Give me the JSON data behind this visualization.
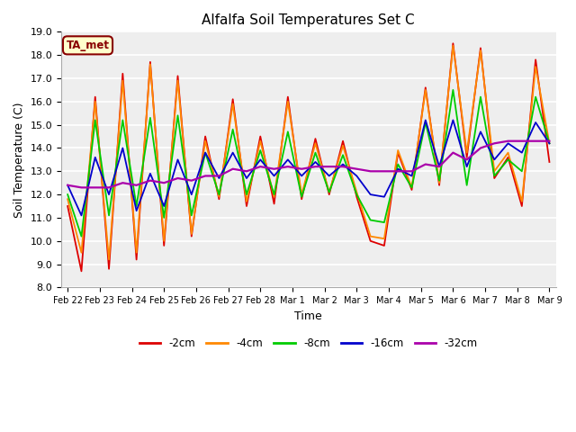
{
  "title": "Alfalfa Soil Temperatures Set C",
  "xlabel": "Time",
  "ylabel": "Soil Temperature (C)",
  "ylim": [
    8.0,
    19.0
  ],
  "yticks": [
    8.0,
    9.0,
    10.0,
    11.0,
    12.0,
    13.0,
    14.0,
    15.0,
    16.0,
    17.0,
    18.0,
    19.0
  ],
  "xtick_labels": [
    "Feb 22",
    "Feb 23",
    "Feb 24",
    "Feb 25",
    "Feb 26",
    "Feb 27",
    "Feb 28",
    "Mar 1",
    "Mar 2",
    "Mar 3",
    "Mar 4",
    "Mar 5",
    "Mar 6",
    "Mar 7",
    "Mar 8",
    "Mar 9"
  ],
  "fig_bg_color": "#ffffff",
  "plot_bg_color": "#eeeeee",
  "grid_color": "#ffffff",
  "annotation_text": "TA_met",
  "annotation_bg": "#ffffcc",
  "annotation_border": "#880000",
  "annotation_text_color": "#880000",
  "series_order": [
    "2cm",
    "4cm",
    "8cm",
    "16cm",
    "32cm"
  ],
  "series": {
    "2cm": {
      "color": "#dd0000",
      "label": "-2cm",
      "linewidth": 1.3,
      "values": [
        11.5,
        8.7,
        16.2,
        8.8,
        17.2,
        9.2,
        17.7,
        9.8,
        17.1,
        10.2,
        14.5,
        11.8,
        16.1,
        11.5,
        14.5,
        11.6,
        16.2,
        11.8,
        14.4,
        12.0,
        14.3,
        11.9,
        10.0,
        9.8,
        13.8,
        12.2,
        16.6,
        12.4,
        18.5,
        13.6,
        18.3,
        12.7,
        13.6,
        11.5,
        17.8,
        13.4
      ]
    },
    "4cm": {
      "color": "#ff8800",
      "label": "-4cm",
      "linewidth": 1.3,
      "values": [
        11.8,
        9.5,
        16.0,
        9.2,
        16.9,
        9.5,
        17.6,
        10.0,
        16.9,
        10.3,
        14.3,
        11.9,
        15.9,
        11.7,
        14.3,
        11.9,
        16.0,
        12.0,
        14.2,
        12.1,
        14.1,
        12.1,
        10.2,
        10.1,
        13.9,
        12.3,
        16.5,
        12.5,
        18.4,
        13.8,
        18.2,
        13.0,
        13.8,
        11.7,
        17.5,
        14.2
      ]
    },
    "8cm": {
      "color": "#00cc00",
      "label": "-8cm",
      "linewidth": 1.3,
      "values": [
        12.0,
        10.2,
        15.2,
        11.1,
        15.2,
        11.5,
        15.3,
        11.0,
        15.4,
        11.1,
        13.8,
        12.0,
        14.8,
        12.0,
        13.9,
        12.0,
        14.7,
        11.9,
        13.8,
        12.1,
        13.7,
        12.0,
        10.9,
        10.8,
        13.3,
        12.3,
        15.1,
        12.6,
        16.5,
        12.4,
        16.2,
        12.8,
        13.5,
        13.0,
        16.2,
        14.2
      ]
    },
    "16cm": {
      "color": "#0000cc",
      "label": "-16cm",
      "linewidth": 1.3,
      "values": [
        12.4,
        11.1,
        13.6,
        12.0,
        14.0,
        11.3,
        12.9,
        11.5,
        13.5,
        12.0,
        13.8,
        12.7,
        13.8,
        12.7,
        13.5,
        12.8,
        13.5,
        12.8,
        13.4,
        12.8,
        13.3,
        12.8,
        12.0,
        11.9,
        13.1,
        12.8,
        15.2,
        13.2,
        15.2,
        13.2,
        14.7,
        13.5,
        14.2,
        13.8,
        15.1,
        14.2
      ]
    },
    "32cm": {
      "color": "#aa00aa",
      "label": "-32cm",
      "linewidth": 1.6,
      "values": [
        12.4,
        12.3,
        12.3,
        12.3,
        12.5,
        12.4,
        12.6,
        12.5,
        12.7,
        12.6,
        12.8,
        12.8,
        13.1,
        13.0,
        13.2,
        13.1,
        13.2,
        13.1,
        13.2,
        13.2,
        13.2,
        13.1,
        13.0,
        13.0,
        13.0,
        13.0,
        13.3,
        13.2,
        13.8,
        13.5,
        14.0,
        14.2,
        14.3,
        14.3,
        14.3,
        14.3
      ]
    }
  }
}
